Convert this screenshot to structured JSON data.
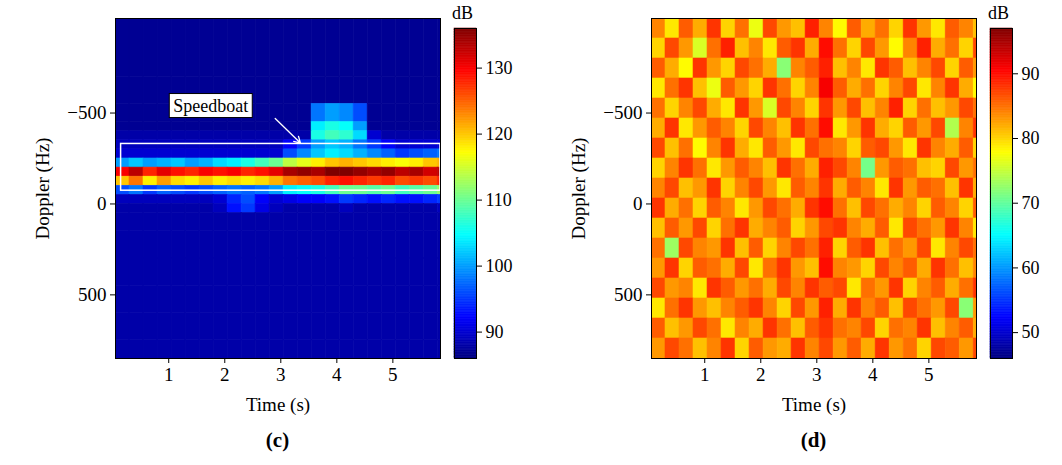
{
  "chart_data": [
    {
      "type": "heatmap",
      "label": "(c)",
      "xlabel": "Time (s)",
      "ylabel": "Doppler (Hz)",
      "xlim": [
        0.05,
        5.85
      ],
      "xticks": [
        1,
        2,
        3,
        4,
        5
      ],
      "ylim": [
        -1020,
        850
      ],
      "yticks": [
        {
          "value": -500,
          "label": "−500"
        },
        0,
        500
      ],
      "x_edges": [
        0.05,
        0.3,
        0.55,
        0.8,
        1.05,
        1.3,
        1.55,
        1.8,
        2.05,
        2.3,
        2.55,
        2.8,
        3.05,
        3.3,
        3.55,
        3.8,
        4.05,
        4.3,
        4.55,
        4.8,
        5.05,
        5.3,
        5.55,
        5.8,
        5.85
      ],
      "y_edges": [
        -1020,
        -700,
        -550,
        -450,
        -400,
        -350,
        -300,
        -250,
        -200,
        -150,
        -100,
        -50,
        0,
        50,
        150,
        300,
        450,
        600,
        750,
        850
      ],
      "cells": [
        [
          87,
          87,
          87,
          87,
          87,
          87,
          87,
          87,
          87,
          87,
          87,
          87,
          87,
          87,
          87,
          87,
          87,
          87,
          87,
          87,
          87,
          87,
          87,
          87
        ],
        [
          87,
          87,
          87,
          87,
          87,
          87,
          87,
          87,
          87,
          87,
          87,
          87,
          87,
          87,
          87,
          87,
          87,
          87,
          87,
          87,
          87,
          87,
          87,
          87
        ],
        [
          87,
          87,
          87,
          87,
          87,
          87,
          87,
          87,
          87,
          87,
          87,
          87,
          87,
          87,
          98,
          100,
          99,
          96,
          87,
          87,
          87,
          87,
          87,
          87
        ],
        [
          87,
          87,
          87,
          87,
          87,
          87,
          87,
          87,
          87,
          87,
          87,
          87,
          87,
          87,
          104,
          106,
          105,
          100,
          87,
          87,
          87,
          87,
          87,
          87
        ],
        [
          88,
          88,
          88,
          88,
          88,
          88,
          88,
          88,
          88,
          88,
          88,
          88,
          88,
          88,
          106,
          108,
          107,
          103,
          90,
          88,
          88,
          88,
          88,
          88
        ],
        [
          89,
          89,
          89,
          89,
          89,
          89,
          89,
          89,
          89,
          89,
          89,
          89,
          92,
          95,
          100,
          102,
          101,
          98,
          95,
          92,
          90,
          90,
          90,
          90
        ],
        [
          90,
          90,
          90,
          90,
          90,
          90,
          90,
          90,
          90,
          90,
          90,
          90,
          96,
          99,
          102,
          104,
          103,
          101,
          99,
          97,
          95,
          96,
          97,
          98
        ],
        [
          100,
          102,
          100,
          101,
          102,
          100,
          101,
          103,
          104,
          106,
          108,
          110,
          114,
          116,
          118,
          120,
          121,
          120,
          119,
          118,
          117,
          118,
          120,
          121
        ],
        [
          130,
          133,
          128,
          131,
          129,
          128,
          130,
          129,
          130,
          128,
          129,
          131,
          134,
          135,
          134,
          136,
          136,
          135,
          134,
          135,
          133,
          134,
          132,
          133
        ],
        [
          120,
          124,
          118,
          122,
          119,
          118,
          120,
          118,
          119,
          118,
          119,
          121,
          124,
          125,
          126,
          128,
          129,
          128,
          127,
          128,
          126,
          127,
          126,
          128
        ],
        [
          96,
          98,
          95,
          97,
          96,
          95,
          96,
          97,
          98,
          97,
          98,
          100,
          104,
          105,
          106,
          108,
          110,
          110,
          109,
          110,
          108,
          109,
          110,
          112
        ],
        [
          89,
          89,
          89,
          89,
          89,
          89,
          89,
          90,
          94,
          96,
          92,
          90,
          91,
          92,
          92,
          93,
          95,
          94,
          93,
          94,
          93,
          93,
          94,
          95
        ],
        [
          88,
          88,
          88,
          88,
          88,
          88,
          88,
          89,
          93,
          95,
          91,
          89,
          88,
          88,
          88,
          88,
          89,
          88,
          88,
          88,
          88,
          88,
          88,
          89
        ],
        [
          88,
          88,
          88,
          88,
          88,
          88,
          88,
          88,
          88,
          88,
          88,
          88,
          88,
          88,
          88,
          88,
          88,
          88,
          88,
          88,
          88,
          88,
          88,
          88
        ],
        [
          88,
          88,
          88,
          88,
          88,
          88,
          88,
          88,
          88,
          88,
          88,
          88,
          88,
          88,
          88,
          88,
          88,
          88,
          88,
          88,
          88,
          88,
          88,
          88
        ],
        [
          88,
          88,
          88,
          88,
          88,
          88,
          88,
          88,
          88,
          88,
          88,
          88,
          88,
          88,
          88,
          88,
          88,
          88,
          88,
          88,
          88,
          88,
          88,
          88
        ],
        [
          88,
          88,
          88,
          88,
          88,
          88,
          88,
          88,
          88,
          88,
          88,
          88,
          88,
          88,
          88,
          88,
          88,
          88,
          88,
          88,
          88,
          88,
          88,
          88
        ],
        [
          88,
          88,
          88,
          88,
          88,
          88,
          88,
          88,
          88,
          88,
          88,
          88,
          88,
          88,
          88,
          88,
          88,
          88,
          88,
          88,
          88,
          88,
          88,
          88
        ],
        [
          88,
          88,
          88,
          88,
          88,
          88,
          88,
          88,
          88,
          88,
          88,
          88,
          88,
          88,
          88,
          88,
          88,
          88,
          88,
          88,
          88,
          88,
          88,
          88
        ]
      ],
      "colorbar": {
        "label": "dB",
        "range": [
          86,
          136
        ],
        "ticks": [
          90,
          100,
          110,
          120,
          130
        ]
      },
      "annotation": {
        "text": "Speedboat",
        "at": [
          1.75,
          -540
        ],
        "box": {
          "x": [
            0.15,
            5.85
          ],
          "y": [
            -330,
            -73
          ]
        },
        "arrow": {
          "from": [
            2.9,
            -470
          ],
          "to": [
            3.35,
            -335
          ]
        }
      }
    },
    {
      "type": "heatmap",
      "label": "(d)",
      "xlabel": "Time (s)",
      "ylabel": "Doppler (Hz)",
      "xlim": [
        0.05,
        5.85
      ],
      "xticks": [
        1,
        2,
        3,
        4,
        5
      ],
      "ylim": [
        -1020,
        850
      ],
      "yticks": [
        {
          "value": -500,
          "label": "−500"
        },
        0,
        500
      ],
      "x_edges": [
        0.05,
        0.3,
        0.55,
        0.8,
        1.05,
        1.3,
        1.55,
        1.8,
        2.05,
        2.3,
        2.55,
        2.8,
        3.05,
        3.3,
        3.55,
        3.8,
        4.05,
        4.3,
        4.55,
        4.8,
        5.05,
        5.3,
        5.55,
        5.8,
        5.85
      ],
      "y_edges": [
        -1020,
        -910,
        -800,
        -690,
        -580,
        -470,
        -360,
        -250,
        -140,
        -30,
        80,
        190,
        300,
        410,
        520,
        630,
        740,
        850
      ],
      "cells": [
        [
          84,
          79,
          86,
          82,
          88,
          80,
          85,
          77,
          87,
          83,
          81,
          89,
          84,
          78,
          86,
          82,
          85,
          80,
          88,
          83,
          79,
          86,
          84,
          81
        ],
        [
          80,
          87,
          83,
          76,
          85,
          89,
          81,
          84,
          79,
          86,
          88,
          82,
          90,
          85,
          80,
          87,
          83,
          78,
          84,
          89,
          82,
          85,
          80,
          87
        ],
        [
          86,
          82,
          78,
          88,
          83,
          80,
          87,
          85,
          82,
          72,
          84,
          86,
          89,
          81,
          84,
          79,
          88,
          86,
          81,
          84,
          87,
          80,
          86,
          83
        ],
        [
          79,
          85,
          88,
          81,
          77,
          86,
          83,
          80,
          88,
          85,
          80,
          84,
          91,
          86,
          82,
          85,
          80,
          84,
          87,
          79,
          84,
          88,
          82,
          78
        ],
        [
          85,
          80,
          84,
          87,
          82,
          79,
          88,
          83,
          76,
          87,
          84,
          80,
          88,
          83,
          87,
          81,
          84,
          89,
          80,
          85,
          81,
          83,
          87,
          85
        ],
        [
          82,
          88,
          79,
          83,
          86,
          84,
          80,
          87,
          84,
          81,
          88,
          85,
          90,
          79,
          83,
          88,
          82,
          80,
          86,
          83,
          87,
          74,
          84,
          88
        ],
        [
          87,
          81,
          85,
          78,
          84,
          88,
          82,
          79,
          86,
          83,
          79,
          87,
          85,
          84,
          80,
          86,
          87,
          83,
          79,
          88,
          84,
          82,
          86,
          80
        ],
        [
          80,
          84,
          88,
          85,
          79,
          83,
          86,
          84,
          81,
          88,
          85,
          82,
          89,
          87,
          84,
          71,
          83,
          86,
          85,
          81,
          80,
          87,
          83,
          85
        ],
        [
          84,
          87,
          81,
          83,
          88,
          80,
          84,
          87,
          83,
          79,
          86,
          84,
          88,
          82,
          86,
          84,
          79,
          88,
          83,
          86,
          85,
          81,
          88,
          82
        ],
        [
          88,
          82,
          85,
          80,
          86,
          84,
          79,
          83,
          87,
          85,
          82,
          88,
          90,
          85,
          81,
          87,
          85,
          82,
          84,
          80,
          86,
          84,
          80,
          86
        ],
        [
          81,
          86,
          83,
          87,
          80,
          85,
          88,
          82,
          84,
          86,
          80,
          83,
          87,
          88,
          84,
          82,
          86,
          79,
          87,
          85,
          83,
          88,
          84,
          79
        ],
        [
          85,
          73,
          87,
          84,
          83,
          88,
          81,
          86,
          80,
          84,
          87,
          85,
          89,
          80,
          86,
          88,
          81,
          85,
          83,
          87,
          79,
          84,
          87,
          85
        ],
        [
          83,
          88,
          80,
          86,
          85,
          82,
          87,
          79,
          85,
          88,
          83,
          81,
          90,
          84,
          83,
          80,
          87,
          84,
          86,
          82,
          88,
          85,
          81,
          84
        ],
        [
          87,
          83,
          84,
          79,
          88,
          86,
          83,
          85,
          82,
          87,
          84,
          88,
          86,
          87,
          79,
          85,
          83,
          88,
          80,
          84,
          86,
          82,
          85,
          88
        ],
        [
          79,
          85,
          88,
          83,
          81,
          84,
          86,
          88,
          84,
          80,
          87,
          83,
          89,
          82,
          88,
          84,
          86,
          81,
          87,
          85,
          83,
          87,
          72,
          83
        ],
        [
          86,
          81,
          83,
          87,
          85,
          79,
          84,
          82,
          88,
          85,
          81,
          86,
          88,
          85,
          84,
          87,
          80,
          85,
          84,
          88,
          81,
          84,
          86,
          82
        ],
        [
          83,
          87,
          85,
          81,
          84,
          88,
          80,
          86,
          83,
          82,
          88,
          84,
          87,
          83,
          86,
          82,
          88,
          83,
          85,
          80,
          87,
          86,
          83,
          87
        ]
      ],
      "colorbar": {
        "label": "dB",
        "range": [
          46,
          97
        ],
        "ticks": [
          50,
          60,
          70,
          80,
          90
        ]
      }
    }
  ]
}
